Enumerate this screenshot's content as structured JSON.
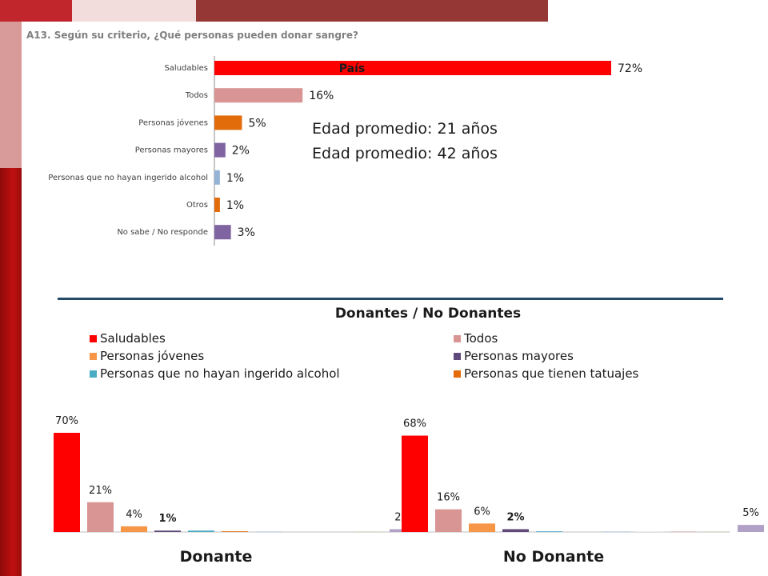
{
  "question": "A13. Según su criterio, ¿Qué personas pueden donar sangre?",
  "header_colors": [
    "#c0262b",
    "#f2dcdc",
    "#953735"
  ],
  "chart_data": [
    {
      "type": "bar",
      "orientation": "horizontal",
      "title": "País",
      "categories": [
        "Saludables",
        "Todos",
        "Personas jóvenes",
        "Personas mayores",
        "Personas que no hayan ingerido alcohol",
        "Otros",
        "No sabe / No responde"
      ],
      "values": [
        72,
        16,
        5,
        2,
        1,
        1,
        3
      ],
      "value_labels": [
        "72%",
        "16%",
        "5%",
        "2%",
        "1%",
        "1%",
        "3%"
      ],
      "colors": [
        "#ff0000",
        "#d99594",
        "#e36c0a",
        "#8064a2",
        "#95b3d7",
        "#e36c0a",
        "#8064a2"
      ],
      "annotations": [
        "Edad promedio: 21 años",
        "Edad promedio: 42 años"
      ]
    },
    {
      "type": "bar",
      "title": "Donantes / No Donantes",
      "categories": [
        "Donante",
        "No Donante"
      ],
      "series": [
        {
          "name": "Saludables",
          "color": "#ff0000",
          "values": [
            70,
            68
          ],
          "labels": [
            "70%",
            "68%"
          ]
        },
        {
          "name": "Todos",
          "color": "#d99594",
          "values": [
            21,
            16
          ],
          "labels": [
            "21%",
            "16%"
          ]
        },
        {
          "name": "Personas jóvenes",
          "color": "#f79646",
          "values": [
            4,
            6
          ],
          "labels": [
            "4%",
            "6%"
          ]
        },
        {
          "name": "Personas mayores",
          "color": "#604a7b",
          "values": [
            1,
            2
          ],
          "labels": [
            "1%",
            "2%"
          ]
        },
        {
          "name": "Personas que no hayan ingerido alcohol",
          "color": "#4bacc6",
          "values": [
            1,
            0.5
          ],
          "labels": [
            "",
            ""
          ]
        },
        {
          "name": "Personas que tienen tatuajes",
          "color": "#e46c0a",
          "values": [
            0.5,
            0
          ],
          "labels": [
            "",
            ""
          ]
        },
        {
          "name": "",
          "color": "#95b3d7",
          "values": [
            0.3,
            0.3
          ],
          "labels": [
            "",
            ""
          ]
        },
        {
          "name": "",
          "color": "#dddddd",
          "values": [
            0,
            0.3
          ],
          "labels": [
            "",
            ""
          ]
        },
        {
          "name": "",
          "color": "#cc9999",
          "values": [
            0,
            0.3
          ],
          "labels": [
            "",
            ""
          ]
        },
        {
          "name": "",
          "color": "#c4bd97",
          "values": [
            0.3,
            0.3
          ],
          "labels": [
            "",
            ""
          ]
        },
        {
          "name": "",
          "color": "#b2a1c7",
          "values": [
            2,
            5
          ],
          "labels": [
            "2%",
            "5%"
          ]
        }
      ],
      "legend_position": "top"
    }
  ]
}
